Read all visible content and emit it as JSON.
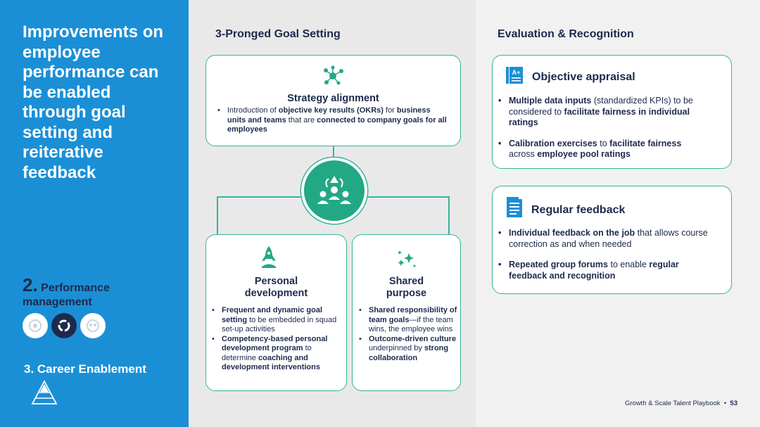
{
  "sidebar": {
    "title": "Improvements on employee performance can be enabled through goal setting and reiterative feedback",
    "section_number": "2.",
    "section_label_line1": "Performance",
    "section_label_line2": "management",
    "next_section": "3. Career Enablement"
  },
  "middle": {
    "title": "3-Pronged Goal Setting",
    "strategy": {
      "heading": "Strategy alignment",
      "bullet": [
        {
          "t": "Introduction of ",
          "b": false
        },
        {
          "t": "objective key results (OKRs)",
          "b": true
        },
        {
          "t": " for ",
          "b": false
        },
        {
          "t": "business units and teams",
          "b": true
        },
        {
          "t": " that are ",
          "b": false
        },
        {
          "t": "connected to company goals for all employees",
          "b": true
        }
      ]
    },
    "personal": {
      "heading_line1": "Personal",
      "heading_line2": "development",
      "bullets": [
        [
          {
            "t": "Frequent and dynamic goal setting",
            "b": true
          },
          {
            "t": " to be embedded in squad set-up activities",
            "b": false
          }
        ],
        [
          {
            "t": "Competency-based personal development program",
            "b": true
          },
          {
            "t": " to determine ",
            "b": false
          },
          {
            "t": "coaching and development interventions",
            "b": true
          }
        ]
      ]
    },
    "shared": {
      "heading_line1": "Shared",
      "heading_line2": "purpose",
      "bullets": [
        [
          {
            "t": "Shared responsibility of team goals",
            "b": true
          },
          {
            "t": "—if the team wins, the employee wins",
            "b": false
          }
        ],
        [
          {
            "t": "Outcome-driven culture",
            "b": true
          },
          {
            "t": " underpinned by ",
            "b": false
          },
          {
            "t": "strong collaboration",
            "b": true
          }
        ]
      ]
    }
  },
  "right": {
    "title": "Evaluation & Recognition",
    "appraisal": {
      "heading": "Objective appraisal",
      "icon_text": "A+",
      "bullets": [
        [
          {
            "t": "Multiple data inputs",
            "b": true
          },
          {
            "t": " (standardized KPIs) to be considered to ",
            "b": false
          },
          {
            "t": "facilitate fairness in individual ratings",
            "b": true
          }
        ],
        [
          {
            "t": "Calibration exercises",
            "b": true
          },
          {
            "t": " to ",
            "b": false
          },
          {
            "t": "facilitate fairness",
            "b": true
          },
          {
            "t": " across ",
            "b": false
          },
          {
            "t": "employee pool ratings",
            "b": true
          }
        ]
      ]
    },
    "feedback": {
      "heading": "Regular feedback",
      "bullets": [
        [
          {
            "t": "Individual feedback on the job",
            "b": true
          },
          {
            "t": " that allows course correction as and when needed",
            "b": false
          }
        ],
        [
          {
            "t": "Repeated group forums",
            "b": true
          },
          {
            "t": " to enable ",
            "b": false
          },
          {
            "t": "regular feedback and recognition",
            "b": true
          }
        ]
      ]
    }
  },
  "footer": {
    "text": "Growth & Scale Talent Playbook",
    "separator": "•",
    "page": "53"
  },
  "colors": {
    "sidebar_blue": "#1b8fd6",
    "navy": "#1d2a4d",
    "teal": "#23a886",
    "teal_border": "#36b59a"
  },
  "icons": [
    "network-nodes-icon",
    "team-group-icon",
    "rocket-icon",
    "sparkles-icon",
    "grade-document-icon",
    "newspaper-icon",
    "pyramid-icon"
  ]
}
